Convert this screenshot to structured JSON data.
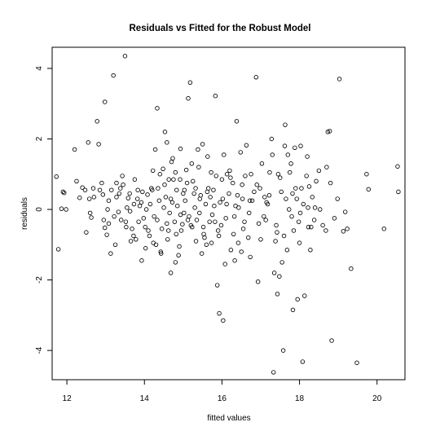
{
  "chart_data": {
    "type": "scatter",
    "title": "Residuals vs Fitted for the Robust Model",
    "xlabel": "fitted values",
    "ylabel": "residuals",
    "xlim": [
      11.62,
      20.72
    ],
    "ylim": [
      -4.83,
      4.6
    ],
    "xticks": [
      12,
      14,
      16,
      18,
      20
    ],
    "yticks": [
      -4,
      -2,
      0,
      2,
      4
    ],
    "grid": false,
    "legend": "none",
    "marker": "open-circle",
    "points": [
      [
        11.73,
        0.93
      ],
      [
        11.78,
        -1.13
      ],
      [
        11.86,
        0.02
      ],
      [
        11.9,
        0.5
      ],
      [
        11.93,
        0.47
      ],
      [
        11.98,
        0.0
      ],
      [
        12.2,
        1.7
      ],
      [
        12.25,
        0.8
      ],
      [
        12.33,
        0.33
      ],
      [
        12.4,
        0.62
      ],
      [
        12.47,
        0.55
      ],
      [
        12.5,
        -0.65
      ],
      [
        12.55,
        1.9
      ],
      [
        12.58,
        0.3
      ],
      [
        12.63,
        -0.23
      ],
      [
        12.68,
        0.6
      ],
      [
        12.78,
        2.5
      ],
      [
        12.82,
        1.85
      ],
      [
        12.85,
        0.55
      ],
      [
        12.93,
        0.42
      ],
      [
        12.98,
        3.05
      ],
      [
        12.98,
        -0.52
      ],
      [
        13.03,
        -0.72
      ],
      [
        13.08,
        -0.4
      ],
      [
        13.08,
        0.25
      ],
      [
        13.13,
        -1.25
      ],
      [
        13.2,
        3.8
      ],
      [
        13.22,
        -0.2
      ],
      [
        13.28,
        0.75
      ],
      [
        13.28,
        0.35
      ],
      [
        13.33,
        -0.07
      ],
      [
        13.38,
        0.6
      ],
      [
        13.43,
        0.95
      ],
      [
        13.5,
        4.35
      ],
      [
        13.53,
        -0.5
      ],
      [
        13.58,
        0.32
      ],
      [
        13.63,
        -0.05
      ],
      [
        13.68,
        -0.55
      ],
      [
        13.73,
        0.15
      ],
      [
        13.78,
        -0.85
      ],
      [
        13.83,
        0.55
      ],
      [
        13.88,
        0.1
      ],
      [
        13.93,
        -1.45
      ],
      [
        13.98,
        -0.25
      ],
      [
        14.03,
        -1.1
      ],
      [
        14.08,
        0.42
      ],
      [
        14.13,
        -0.75
      ],
      [
        14.18,
        0.6
      ],
      [
        14.23,
        -0.95
      ],
      [
        14.28,
        1.7
      ],
      [
        14.33,
        2.87
      ],
      [
        14.33,
        -0.3
      ],
      [
        14.38,
        0.25
      ],
      [
        14.43,
        -1.25
      ],
      [
        14.48,
        1.15
      ],
      [
        14.53,
        2.2
      ],
      [
        14.58,
        1.9
      ],
      [
        14.58,
        -0.4
      ],
      [
        14.63,
        0.85
      ],
      [
        14.68,
        -1.8
      ],
      [
        14.68,
        0.3
      ],
      [
        14.73,
        1.45
      ],
      [
        14.78,
        -0.35
      ],
      [
        14.8,
        -1.5
      ],
      [
        14.83,
        0.55
      ],
      [
        14.88,
        -1.3
      ],
      [
        14.93,
        1.72
      ],
      [
        14.93,
        -0.15
      ],
      [
        14.98,
        -0.42
      ],
      [
        15.03,
        0.55
      ],
      [
        15.08,
        1.12
      ],
      [
        15.13,
        3.15
      ],
      [
        15.18,
        3.6
      ],
      [
        15.23,
        -0.5
      ],
      [
        15.28,
        0.45
      ],
      [
        15.33,
        -0.9
      ],
      [
        15.38,
        1.7
      ],
      [
        15.43,
        0.3
      ],
      [
        15.48,
        -1.25
      ],
      [
        15.53,
        -0.7
      ],
      [
        15.58,
        0.15
      ],
      [
        15.63,
        1.5
      ],
      [
        15.68,
        -0.35
      ],
      [
        15.73,
        -0.95
      ],
      [
        15.78,
        0.55
      ],
      [
        15.83,
        3.22
      ],
      [
        15.88,
        -2.15
      ],
      [
        15.93,
        -2.95
      ],
      [
        15.98,
        -0.45
      ],
      [
        16.03,
        -3.15
      ],
      [
        16.08,
        -1.55
      ],
      [
        16.13,
        1.0
      ],
      [
        16.18,
        0.45
      ],
      [
        16.23,
        -1.15
      ],
      [
        16.28,
        0.75
      ],
      [
        16.33,
        -1.45
      ],
      [
        16.38,
        2.5
      ],
      [
        16.43,
        0.05
      ],
      [
        16.48,
        1.62
      ],
      [
        16.53,
        0.3
      ],
      [
        16.58,
        -0.35
      ],
      [
        16.63,
        1.82
      ],
      [
        16.68,
        -0.8
      ],
      [
        16.73,
        -1.35
      ],
      [
        16.78,
        0.25
      ],
      [
        16.83,
        0.5
      ],
      [
        16.88,
        3.75
      ],
      [
        16.93,
        -2.05
      ],
      [
        16.98,
        0.6
      ],
      [
        17.03,
        1.3
      ],
      [
        17.08,
        -0.2
      ],
      [
        17.13,
        -0.3
      ],
      [
        17.18,
        0.15
      ],
      [
        17.23,
        1.05
      ],
      [
        17.28,
        2.0
      ],
      [
        17.33,
        -4.62
      ],
      [
        17.38,
        -0.9
      ],
      [
        17.43,
        -2.4
      ],
      [
        17.48,
        -1.9
      ],
      [
        17.53,
        0.5
      ],
      [
        17.58,
        -4.0
      ],
      [
        17.63,
        2.4
      ],
      [
        17.68,
        -1.15
      ],
      [
        17.73,
        0.0
      ],
      [
        17.78,
        1.3
      ],
      [
        17.83,
        -2.85
      ],
      [
        17.88,
        1.75
      ],
      [
        17.93,
        0.3
      ],
      [
        17.98,
        -0.35
      ],
      [
        18.03,
        1.8
      ],
      [
        18.08,
        -4.32
      ],
      [
        18.13,
        -2.45
      ],
      [
        18.18,
        0.95
      ],
      [
        18.23,
        -0.5
      ],
      [
        18.28,
        -1.15
      ],
      [
        18.33,
        0.35
      ],
      [
        18.38,
        -0.3
      ],
      [
        18.43,
        0.8
      ],
      [
        18.53,
        0.0
      ],
      [
        18.68,
        -0.6
      ],
      [
        18.73,
        2.2
      ],
      [
        18.78,
        2.22
      ],
      [
        18.83,
        -3.72
      ],
      [
        18.9,
        -0.25
      ],
      [
        18.98,
        0.3
      ],
      [
        19.03,
        3.7
      ],
      [
        19.13,
        -0.62
      ],
      [
        19.18,
        -0.07
      ],
      [
        19.23,
        -0.55
      ],
      [
        19.33,
        -1.68
      ],
      [
        19.48,
        -4.35
      ],
      [
        19.73,
        1.0
      ],
      [
        19.78,
        0.57
      ],
      [
        20.18,
        -0.55
      ],
      [
        20.53,
        1.22
      ],
      [
        20.55,
        0.5
      ],
      [
        14.05,
        0.0
      ],
      [
        14.15,
        0.15
      ],
      [
        14.25,
        -0.2
      ],
      [
        14.35,
        0.6
      ],
      [
        14.45,
        -0.55
      ],
      [
        14.55,
        0.35
      ],
      [
        14.65,
        -0.1
      ],
      [
        14.75,
        0.85
      ],
      [
        14.85,
        0.1
      ],
      [
        14.95,
        -0.6
      ],
      [
        15.05,
        0.25
      ],
      [
        15.15,
        -0.2
      ],
      [
        15.25,
        0.8
      ],
      [
        15.35,
        -0.3
      ],
      [
        15.45,
        0.4
      ],
      [
        15.55,
        -0.8
      ],
      [
        15.65,
        0.6
      ],
      [
        15.75,
        -0.15
      ],
      [
        15.85,
        0.95
      ],
      [
        15.95,
        0.2
      ],
      [
        13.85,
        -0.35
      ],
      [
        13.95,
        0.5
      ],
      [
        13.75,
        0.85
      ],
      [
        13.65,
        -0.9
      ],
      [
        13.55,
        0.05
      ],
      [
        14.4,
        1.0
      ],
      [
        14.6,
        -0.85
      ],
      [
        14.7,
        1.35
      ],
      [
        14.9,
        -1.05
      ],
      [
        15.1,
        0.75
      ],
      [
        15.2,
        -0.45
      ],
      [
        15.4,
        1.2
      ],
      [
        15.6,
        -1.0
      ],
      [
        15.7,
        0.35
      ],
      [
        15.9,
        -0.6
      ],
      [
        16.0,
        0.85
      ],
      [
        16.1,
        -0.25
      ],
      [
        16.2,
        1.1
      ],
      [
        16.3,
        -0.7
      ],
      [
        16.4,
        0.4
      ],
      [
        16.5,
        -1.2
      ],
      [
        16.6,
        0.95
      ],
      [
        16.7,
        -0.1
      ],
      [
        16.9,
        0.7
      ],
      [
        17.0,
        -0.85
      ],
      [
        17.1,
        0.35
      ],
      [
        17.3,
        1.55
      ],
      [
        17.4,
        -0.45
      ],
      [
        17.5,
        0.9
      ],
      [
        17.6,
        -0.75
      ],
      [
        17.7,
        1.55
      ],
      [
        17.8,
        -0.2
      ],
      [
        17.9,
        0.6
      ],
      [
        18.0,
        -0.95
      ],
      [
        18.1,
        0.15
      ],
      [
        18.2,
        1.5
      ],
      [
        18.3,
        -0.5
      ],
      [
        18.4,
        0.05
      ],
      [
        18.5,
        1.1
      ],
      [
        18.6,
        -0.45
      ],
      [
        18.7,
        1.2
      ],
      [
        18.8,
        0.75
      ],
      [
        13.45,
        0.7
      ],
      [
        13.4,
        -0.3
      ],
      [
        13.35,
        0.45
      ],
      [
        13.25,
        -1.0
      ],
      [
        13.15,
        0.55
      ],
      [
        13.05,
        0.0
      ],
      [
        12.95,
        -0.3
      ],
      [
        12.9,
        0.75
      ],
      [
        12.7,
        0.35
      ],
      [
        12.6,
        -0.1
      ],
      [
        14.1,
        -0.6
      ],
      [
        14.2,
        0.55
      ],
      [
        14.3,
        -1.0
      ],
      [
        14.5,
        0.05
      ],
      [
        14.8,
        1.05
      ],
      [
        15.0,
        0.45
      ],
      [
        15.3,
        0.05
      ],
      [
        15.5,
        1.85
      ],
      [
        15.8,
        0.1
      ],
      [
        16.05,
        1.55
      ],
      [
        16.35,
        0.1
      ],
      [
        16.55,
        -0.55
      ],
      [
        16.75,
        1.0
      ],
      [
        16.95,
        -0.4
      ],
      [
        17.15,
        0.2
      ],
      [
        17.35,
        -1.8
      ],
      [
        17.45,
        1.0
      ],
      [
        17.55,
        -1.5
      ],
      [
        17.65,
        0.3
      ],
      [
        17.75,
        1.05
      ],
      [
        17.85,
        -0.6
      ],
      [
        17.95,
        -2.55
      ],
      [
        18.05,
        0.6
      ],
      [
        18.25,
        0.65
      ],
      [
        14.42,
        -1.2
      ],
      [
        14.62,
        -0.6
      ],
      [
        14.72,
        0.2
      ],
      [
        14.82,
        -0.7
      ],
      [
        15.02,
        -0.1
      ],
      [
        15.22,
        1.3
      ],
      [
        15.42,
        -0.1
      ],
      [
        15.62,
        0.5
      ],
      [
        15.82,
        -0.35
      ],
      [
        16.02,
        0.3
      ],
      [
        16.22,
        0.9
      ],
      [
        16.42,
        -0.95
      ],
      [
        13.92,
        0.2
      ],
      [
        13.72,
        -0.75
      ],
      [
        13.62,
        0.45
      ],
      [
        13.52,
        -0.35
      ],
      [
        13.82,
        0.3
      ],
      [
        14.02,
        -0.5
      ],
      [
        14.22,
        1.1
      ],
      [
        14.52,
        0.7
      ],
      [
        14.92,
        0.85
      ],
      [
        15.12,
        -0.3
      ],
      [
        15.32,
        0.6
      ],
      [
        15.52,
        -0.5
      ],
      [
        15.72,
        1.05
      ],
      [
        15.92,
        -0.75
      ],
      [
        16.12,
        0.15
      ],
      [
        16.32,
        -0.2
      ],
      [
        16.52,
        0.7
      ],
      [
        16.72,
        0.25
      ],
      [
        17.22,
        0.4
      ],
      [
        17.42,
        -0.65
      ],
      [
        17.62,
        1.8
      ],
      [
        17.82,
        0.45
      ],
      [
        18.02,
        -0.1
      ],
      [
        18.22,
        0.05
      ]
    ]
  }
}
